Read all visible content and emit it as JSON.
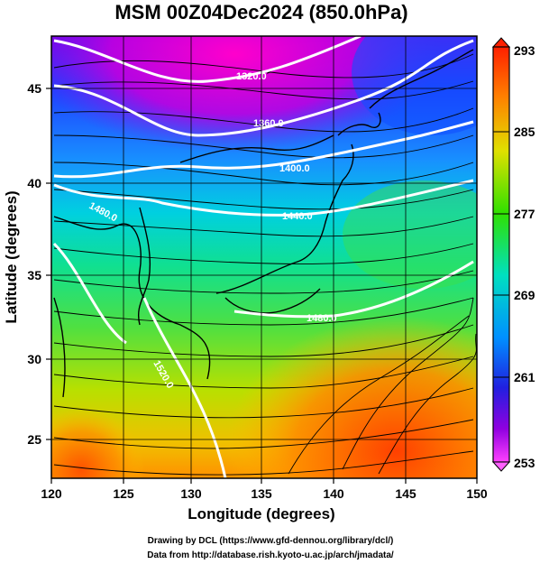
{
  "title": "MSM 00Z04Dec2024 (850.0hPa)",
  "xlabel": "Longitude (degrees)",
  "ylabel": "Latitude  (degrees)",
  "x_ticks": [
    "120",
    "125",
    "130",
    "135",
    "140",
    "145",
    "150"
  ],
  "y_ticks": [
    "25",
    "30",
    "35",
    "40",
    "45"
  ],
  "colorbar_ticks": [
    "293",
    "285",
    "277",
    "269",
    "261",
    "253"
  ],
  "contour_labels": [
    "1320.0",
    "1360.0",
    "1400.0",
    "1440.0",
    "1480.0",
    "1480.0",
    "1520.0"
  ],
  "credit_line1": "Drawing by DCL (https://www.gfd-dennou.org/library/dcl/)",
  "credit_line2": "Data from http://database.rish.kyoto-u.ac.jp/arch/jmadata/",
  "colors": {
    "temp_cold": "#e800e8",
    "temp_mid": "#00d8d8",
    "temp_warm": "#ff6a00",
    "contour": "#ffffff",
    "streamline": "#000000"
  },
  "chart_data": {
    "type": "map",
    "projection": "lat-lon",
    "xlim": [
      120,
      150
    ],
    "ylim": [
      22.5,
      48
    ],
    "colorbar_range": [
      253,
      293
    ],
    "fields": [
      "temperature (K)",
      "geopotential height (m)",
      "wind streamlines"
    ]
  }
}
